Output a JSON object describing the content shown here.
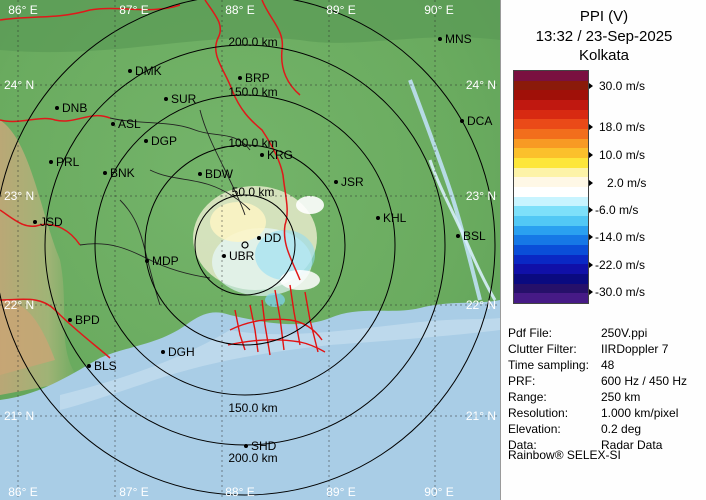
{
  "panel": {
    "product": "PPI (V)",
    "datetime": "13:32 / 23-Sep-2025",
    "station": "Kolkata",
    "credit": "Rainbow® SELEX-SI"
  },
  "colorbar": {
    "labels": [
      "30.0 m/s",
      "18.0 m/s",
      "10.0 m/s",
      "2.0 m/s",
      "-6.0 m/s",
      "-14.0 m/s",
      "-22.0 m/s",
      "-30.0 m/s"
    ],
    "colors": [
      "#7a1040",
      "#8a1a0a",
      "#a01008",
      "#c01810",
      "#d82a12",
      "#ea4a18",
      "#f26e1c",
      "#f89a24",
      "#fbc02c",
      "#fde63a",
      "#fdf3a8",
      "#fff8e6",
      "#ffffff",
      "#c8f4ff",
      "#7ee0fa",
      "#52c8f5",
      "#2aa0f0",
      "#1678e6",
      "#0a4ed8",
      "#0a28c4",
      "#1010a8",
      "#0a0a80",
      "#26106a",
      "#461a86"
    ]
  },
  "info": [
    {
      "key": "Pdf File:",
      "value": "250V.ppi"
    },
    {
      "key": "Clutter Filter:",
      "value": "IIRDoppler 7"
    },
    {
      "key": "Time sampling:",
      "value": "48"
    },
    {
      "key": "PRF:",
      "value": "600 Hz / 450 Hz"
    },
    {
      "key": "Range:",
      "value": "250 km"
    },
    {
      "key": "Resolution:",
      "value": "1.000 km/pixel"
    },
    {
      "key": "Elevation:",
      "value": "0.2 deg"
    },
    {
      "key": "Data:",
      "value": "Radar Data"
    }
  ],
  "map": {
    "lon_labels": [
      "86° E",
      "87° E",
      "88° E",
      "89° E",
      "90° E"
    ],
    "lat_labels": [
      "24° N",
      "23° N",
      "22° N",
      "21° N"
    ],
    "range_labels": [
      "50.0 km",
      "100.0 km",
      "150.0 km",
      "200.0 km"
    ],
    "range_labels_south": [
      "150.0 km",
      "200.0 km"
    ],
    "cities": [
      {
        "name": "MNS"
      },
      {
        "name": "DMK"
      },
      {
        "name": "BRP"
      },
      {
        "name": "DNB"
      },
      {
        "name": "SUR"
      },
      {
        "name": "ASL"
      },
      {
        "name": "DGP"
      },
      {
        "name": "DCA"
      },
      {
        "name": "PRL"
      },
      {
        "name": "BNK"
      },
      {
        "name": "KRG"
      },
      {
        "name": "BDW"
      },
      {
        "name": "JSR"
      },
      {
        "name": "JSD"
      },
      {
        "name": "KHL"
      },
      {
        "name": "BSL"
      },
      {
        "name": "MDP"
      },
      {
        "name": "DD"
      },
      {
        "name": "UBR"
      },
      {
        "name": "BPD"
      },
      {
        "name": "DGH"
      },
      {
        "name": "BLS"
      },
      {
        "name": "SHD"
      }
    ]
  }
}
